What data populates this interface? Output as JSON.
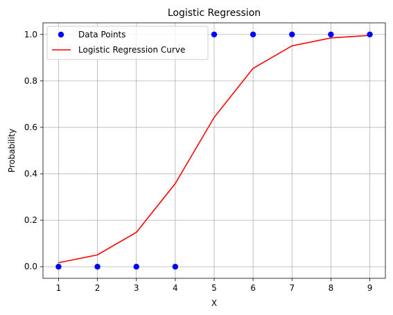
{
  "chart_data": {
    "type": "line",
    "title": "Logistic Regression",
    "xlabel": "X",
    "ylabel": "Probability",
    "xlim": [
      0.6,
      9.4
    ],
    "ylim": [
      -0.05,
      1.05
    ],
    "xticks": [
      1,
      2,
      3,
      4,
      5,
      6,
      7,
      8,
      9
    ],
    "yticks": [
      0.0,
      0.2,
      0.4,
      0.6,
      0.8,
      1.0
    ],
    "ytick_labels": [
      "0.0",
      "0.2",
      "0.4",
      "0.6",
      "0.8",
      "1.0"
    ],
    "grid": true,
    "legend_position": "upper-left",
    "series": [
      {
        "name": "Data Points",
        "kind": "scatter",
        "color": "#0000ff",
        "x": [
          1,
          2,
          3,
          4,
          5,
          6,
          7,
          8,
          9
        ],
        "y": [
          0,
          0,
          0,
          0,
          1,
          1,
          1,
          1,
          1
        ]
      },
      {
        "name": "Logistic Regression Curve",
        "kind": "line",
        "color": "#ff0000",
        "x": [
          1,
          2,
          3,
          4,
          5,
          6,
          7,
          8,
          9
        ],
        "y": [
          0.017,
          0.051,
          0.148,
          0.358,
          0.643,
          0.854,
          0.951,
          0.985,
          0.996
        ]
      }
    ]
  }
}
